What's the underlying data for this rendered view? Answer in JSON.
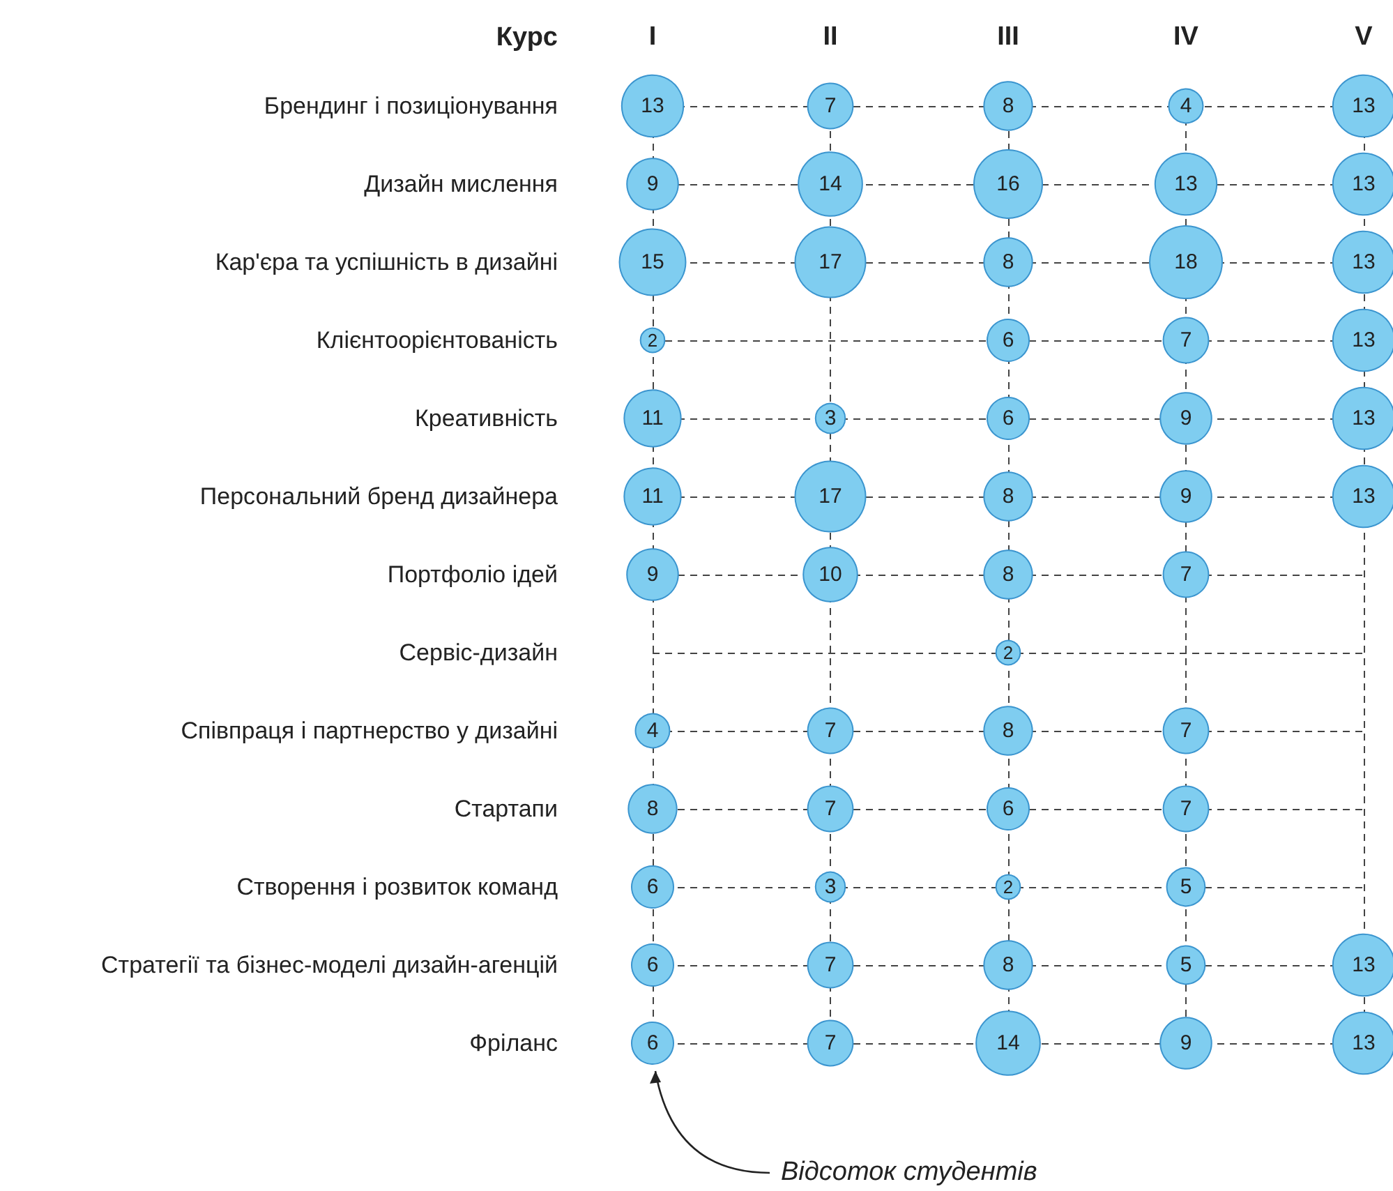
{
  "chart_data": {
    "type": "heatmap",
    "xlabel": "Курс",
    "categories": [
      "I",
      "II",
      "III",
      "IV",
      "V"
    ],
    "y_categories": [
      "Брендинг і позиціонування",
      "Дизайн мислення",
      "Кар'єра та успішність в дизайні",
      "Клієнтоорієнтованість",
      "Креативність",
      "Персональний бренд дизайнера",
      "Портфоліо ідей",
      "Сервіс-дизайн",
      "Співпраця і партнерство у дизайні",
      "Стартапи",
      "Створення і розвиток команд",
      "Стратегії та бізнес-моделі дизайн-агенцій",
      "Фріланс"
    ],
    "cells": [
      [
        13,
        7,
        8,
        4,
        13
      ],
      [
        9,
        14,
        16,
        13,
        13
      ],
      [
        15,
        17,
        8,
        18,
        13
      ],
      [
        2,
        null,
        6,
        7,
        13
      ],
      [
        11,
        3,
        6,
        9,
        13
      ],
      [
        11,
        17,
        8,
        9,
        13
      ],
      [
        9,
        10,
        8,
        7,
        null
      ],
      [
        null,
        null,
        2,
        null,
        null
      ],
      [
        4,
        7,
        8,
        7,
        null
      ],
      [
        8,
        7,
        6,
        7,
        null
      ],
      [
        6,
        3,
        2,
        5,
        null
      ],
      [
        6,
        7,
        8,
        5,
        13
      ],
      [
        6,
        7,
        14,
        9,
        13
      ]
    ],
    "color": "#7fcdf0",
    "data_labels": true,
    "grid": true,
    "line_style": "dashed",
    "annotations": [
      "Відсоток студентів"
    ]
  }
}
